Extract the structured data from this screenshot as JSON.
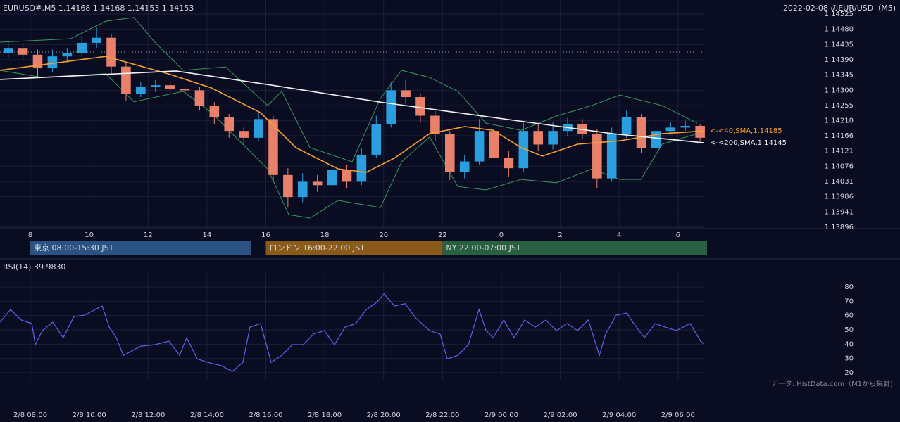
{
  "chart_data": [
    {
      "type": "candlestick",
      "title": "EURUSD#,M5 1.14168 1.14168 1.14153 1.14153",
      "title_right": "2022-02-08 のEUR/USD（M5)",
      "xlim": [
        6.97,
        30.89
      ],
      "xticks": [
        8,
        10,
        12,
        14,
        16,
        18,
        20,
        22,
        {
          "value": 24,
          "label": "0"
        },
        {
          "value": 26,
          "label": "2"
        },
        {
          "value": 28,
          "label": "4"
        },
        {
          "value": 30,
          "label": "6"
        }
      ],
      "ylim": [
        1.13896,
        1.14525
      ],
      "yticks": [
        1.14525,
        {
          "value": 1.1448,
          "label": "1.14480"
        },
        1.14435,
        {
          "value": 1.1439,
          "label": "1.14390"
        },
        1.14345,
        {
          "value": 1.143,
          "label": "1.14300"
        },
        1.14255,
        {
          "value": 1.1421,
          "label": "1.14210"
        },
        1.14166,
        1.14121,
        1.14076,
        1.14031,
        1.13986,
        1.13941,
        1.13896
      ],
      "grid": true,
      "up_color": "#2a9fe0",
      "down_color": "#e8806a",
      "reference_line": 1.14413,
      "x": [
        7.25,
        7.75,
        8.25,
        8.75,
        9.25,
        9.75,
        10.25,
        10.75,
        11.25,
        11.75,
        12.25,
        12.75,
        13.25,
        13.75,
        14.25,
        14.75,
        15.25,
        15.75,
        16.25,
        16.75,
        17.25,
        17.75,
        18.25,
        18.75,
        19.25,
        19.75,
        20.25,
        20.75,
        21.25,
        21.75,
        22.25,
        22.75,
        23.25,
        23.75,
        24.25,
        24.75,
        25.25,
        25.75,
        26.25,
        26.75,
        27.25,
        27.75,
        28.25,
        28.75,
        29.25,
        29.75,
        30.25,
        30.75
      ],
      "open": [
        1.1441,
        1.14425,
        1.14405,
        1.14365,
        1.144,
        1.1441,
        1.1444,
        1.14455,
        1.1437,
        1.1429,
        1.1431,
        1.14315,
        1.14305,
        1.143,
        1.14255,
        1.1422,
        1.1418,
        1.1416,
        1.14215,
        1.1405,
        1.13985,
        1.1403,
        1.1402,
        1.14065,
        1.1403,
        1.1411,
        1.142,
        1.143,
        1.1428,
        1.14225,
        1.1417,
        1.1406,
        1.1409,
        1.1418,
        1.141,
        1.1407,
        1.1418,
        1.1414,
        1.1418,
        1.142,
        1.1417,
        1.1404,
        1.1417,
        1.1422,
        1.1413,
        1.1418,
        1.1419,
        1.14195
      ],
      "high": [
        1.14445,
        1.1444,
        1.1442,
        1.1442,
        1.14425,
        1.1446,
        1.14485,
        1.14465,
        1.1438,
        1.14325,
        1.1433,
        1.14325,
        1.1432,
        1.1431,
        1.14265,
        1.1423,
        1.1419,
        1.14235,
        1.14225,
        1.1407,
        1.14055,
        1.1405,
        1.14085,
        1.1408,
        1.1413,
        1.14225,
        1.14325,
        1.1433,
        1.1429,
        1.1424,
        1.1418,
        1.1411,
        1.14215,
        1.14195,
        1.1412,
        1.14205,
        1.142,
        1.14205,
        1.1422,
        1.14215,
        1.14185,
        1.1419,
        1.1424,
        1.1423,
        1.142,
        1.14205,
        1.1421,
        1.142
      ],
      "low": [
        1.14395,
        1.1439,
        1.1434,
        1.14355,
        1.1438,
        1.144,
        1.14425,
        1.14345,
        1.1427,
        1.1428,
        1.14295,
        1.1429,
        1.14285,
        1.1424,
        1.142,
        1.1416,
        1.1414,
        1.1415,
        1.1403,
        1.13955,
        1.1397,
        1.14,
        1.14005,
        1.1401,
        1.1402,
        1.141,
        1.1419,
        1.1426,
        1.14205,
        1.1415,
        1.14035,
        1.1404,
        1.1408,
        1.14085,
        1.14045,
        1.1406,
        1.1412,
        1.14125,
        1.14165,
        1.14155,
        1.1401,
        1.1403,
        1.1416,
        1.14115,
        1.1412,
        1.1417,
        1.1418,
        1.1415
      ],
      "close": [
        1.14425,
        1.14405,
        1.14365,
        1.144,
        1.1441,
        1.1444,
        1.14455,
        1.1437,
        1.1429,
        1.1431,
        1.14315,
        1.14305,
        1.143,
        1.14255,
        1.1422,
        1.1418,
        1.1416,
        1.14215,
        1.1405,
        1.13985,
        1.1403,
        1.1402,
        1.14065,
        1.1403,
        1.1411,
        1.142,
        1.143,
        1.1428,
        1.14225,
        1.1417,
        1.1406,
        1.1409,
        1.1418,
        1.141,
        1.1407,
        1.1418,
        1.1414,
        1.1418,
        1.142,
        1.1417,
        1.1404,
        1.1417,
        1.1422,
        1.1413,
        1.1418,
        1.1419,
        1.14195,
        1.1416
      ],
      "series": [
        {
          "color": "#3a9a5a",
          "x": [
            6.97,
            9.36,
            10.56,
            11.52,
            12.23,
            13.19,
            14.63,
            16.06,
            16.54,
            17.5,
            18.93,
            19.89,
            20.61,
            21.56,
            22.52,
            23.48,
            24.67,
            25.87,
            27.07,
            28.02,
            29.46,
            30.65
          ],
          "values": [
            1.14442,
            1.14452,
            1.14504,
            1.14515,
            1.14442,
            1.14359,
            1.14369,
            1.14255,
            1.14297,
            1.14131,
            1.14089,
            1.14276,
            1.14359,
            1.14338,
            1.14297,
            1.14203,
            1.14182,
            1.14224,
            1.14255,
            1.14286,
            1.14255,
            1.14203
          ]
        },
        {
          "color": "#3a9a5a",
          "x": [
            6.97,
            8.41,
            10.56,
            11.52,
            13.19,
            14.15,
            15.1,
            16.06,
            16.78,
            17.5,
            18.45,
            19.89,
            20.61,
            21.56,
            22.52,
            23.48,
            24.67,
            25.87,
            27.07,
            28.02,
            28.74,
            29.46,
            30.65
          ],
          "values": [
            1.14359,
            1.14338,
            1.14349,
            1.14266,
            1.14297,
            1.14234,
            1.14151,
            1.14068,
            1.13933,
            1.13923,
            1.13975,
            1.13954,
            1.14089,
            1.14162,
            1.14016,
            1.14006,
            1.14037,
            1.14027,
            1.14068,
            1.14037,
            1.14037,
            1.14141,
            1.14172
          ]
        },
        {
          "color": "#f5a030",
          "label": "<-<40,SMA,1.14185",
          "x": [
            6.97,
            10.56,
            12.71,
            14.15,
            15.82,
            17.02,
            18.45,
            19.41,
            20.37,
            21.56,
            22.76,
            23.72,
            24.67,
            25.39,
            26.59,
            28.02,
            29.46,
            30.89
          ],
          "values": [
            1.14359,
            1.144,
            1.14348,
            1.14307,
            1.14234,
            1.14131,
            1.14068,
            1.14058,
            1.141,
            1.14172,
            1.14193,
            1.14182,
            1.14131,
            1.14106,
            1.14141,
            1.14151,
            1.14172,
            1.1418
          ]
        },
        {
          "color": "#f2f2f2",
          "label": "<-<200,SMA,1.14145",
          "x": [
            6.97,
            12.95,
            16.06,
            19.89,
            22.52,
            25.15,
            27.78,
            30.89
          ],
          "values": [
            1.14332,
            1.14357,
            1.14317,
            1.14265,
            1.14234,
            1.14203,
            1.14172,
            1.14145
          ]
        }
      ],
      "sessions": [
        {
          "label": "東京 08:00-15:30 JST",
          "start": 8,
          "end": 15.5,
          "color": "#2a5282"
        },
        {
          "label": "ロンドン 16:00-22:00 JST",
          "start": 16,
          "end": 22,
          "color": "#8a5a18"
        },
        {
          "label": "NY 22:00-07:00 JST",
          "start": 22,
          "end": 31,
          "color": "#286040"
        }
      ]
    },
    {
      "type": "line",
      "title": "RSI(14) 39.9830",
      "footnote": "データ: HistData.com（M1から集計)",
      "xlim": [
        6.97,
        30.89
      ],
      "xticks": [
        {
          "value": 8,
          "label": "2/8 08:00"
        },
        {
          "value": 10,
          "label": "2/8 10:00"
        },
        {
          "value": 12,
          "label": "2/8 12:00"
        },
        {
          "value": 14,
          "label": "2/8 14:00"
        },
        {
          "value": 16,
          "label": "2/8 16:00"
        },
        {
          "value": 18,
          "label": "2/8 18:00"
        },
        {
          "value": 20,
          "label": "2/8 20:00"
        },
        {
          "value": 22,
          "label": "2/8 22:00"
        },
        {
          "value": 24,
          "label": "2/9 00:00"
        },
        {
          "value": 26,
          "label": "2/9 02:00"
        },
        {
          "value": 28,
          "label": "2/9 04:00"
        },
        {
          "value": 30,
          "label": "2/9 06:00"
        }
      ],
      "ylim": [
        15,
        85
      ],
      "yticks": [
        20,
        30,
        40,
        50,
        60,
        70,
        80
      ],
      "grid": true,
      "color": "#5a66ee",
      "x": [
        6.97,
        7.33,
        7.69,
        8.05,
        8.17,
        8.41,
        8.76,
        9.12,
        9.48,
        9.84,
        10.2,
        10.44,
        10.68,
        10.92,
        11.16,
        11.4,
        11.75,
        12.23,
        12.71,
        13.07,
        13.31,
        13.67,
        14.03,
        14.51,
        14.86,
        15.22,
        15.46,
        15.82,
        16.18,
        16.54,
        16.9,
        17.26,
        17.62,
        17.98,
        18.33,
        18.69,
        19.05,
        19.41,
        19.77,
        20.01,
        20.37,
        20.73,
        21.09,
        21.56,
        21.92,
        22.16,
        22.52,
        22.88,
        23.24,
        23.48,
        23.72,
        24.08,
        24.43,
        24.79,
        25.15,
        25.51,
        25.87,
        26.23,
        26.59,
        26.95,
        27.33,
        27.54,
        27.9,
        28.26,
        28.5,
        28.86,
        29.22,
        29.58,
        29.94,
        30.41,
        30.77,
        30.89
      ],
      "values": [
        55.4,
        64.2,
        56.9,
        54.4,
        39.6,
        49.5,
        55.4,
        44.5,
        59.3,
        60.3,
        64.2,
        66.7,
        51.9,
        44.5,
        32.2,
        34.7,
        38.6,
        39.6,
        42.1,
        32.2,
        44.5,
        29.7,
        27.3,
        24.8,
        20.9,
        27.3,
        51.9,
        54.4,
        27.3,
        32.2,
        39.6,
        39.6,
        47.0,
        49.5,
        39.6,
        51.9,
        54.4,
        64.2,
        69.3,
        75.2,
        66.7,
        68.3,
        58.3,
        49.5,
        47.0,
        29.7,
        32.2,
        39.6,
        64.2,
        49.5,
        44.5,
        56.9,
        44.5,
        56.9,
        51.9,
        56.9,
        49.5,
        54.4,
        49.5,
        56.9,
        32.2,
        47.0,
        60.3,
        61.8,
        54.4,
        44.5,
        54.4,
        51.9,
        49.5,
        54.4,
        42.1,
        39.98
      ]
    }
  ]
}
